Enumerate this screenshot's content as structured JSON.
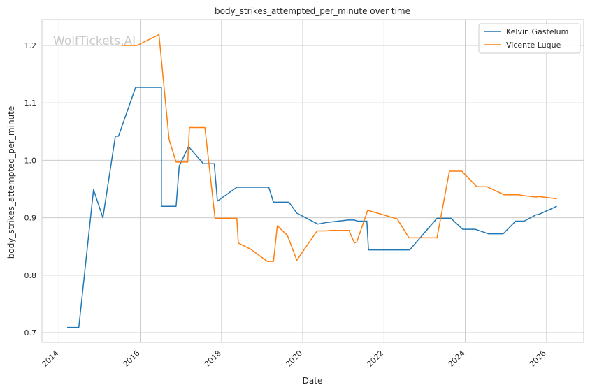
{
  "chart_data": {
    "type": "line",
    "title": "body_strikes_attempted_per_minute over time",
    "xlabel": "Date",
    "ylabel": "body_strikes_attempted_per_minute",
    "watermark": "WolfTickets.AI",
    "x_ticks": [
      "2014",
      "2016",
      "2018",
      "2020",
      "2022",
      "2024",
      "2026"
    ],
    "y_ticks": [
      "0.7",
      "0.8",
      "0.9",
      "1.0",
      "1.1",
      "1.2"
    ],
    "xlim": [
      "2013-08-01",
      "2026-12-01"
    ],
    "ylim": [
      0.683,
      1.245
    ],
    "grid": true,
    "legend_position": "top-right",
    "series": [
      {
        "name": "Kelvin Gastelum",
        "color": "#1f77b4",
        "points": [
          [
            "2014-03-15",
            0.709
          ],
          [
            "2014-06-28",
            0.709
          ],
          [
            "2014-11-08",
            0.949
          ],
          [
            "2015-01-31",
            0.9
          ],
          [
            "2015-05-23",
            1.042
          ],
          [
            "2015-06-20",
            1.042
          ],
          [
            "2015-11-21",
            1.127
          ],
          [
            "2016-07-09",
            1.127
          ],
          [
            "2016-07-10",
            0.92
          ],
          [
            "2016-11-19",
            0.92
          ],
          [
            "2016-12-17",
            0.99
          ],
          [
            "2017-03-11",
            1.024
          ],
          [
            "2017-07-22",
            0.994
          ],
          [
            "2017-10-28",
            0.994
          ],
          [
            "2017-11-25",
            0.929
          ],
          [
            "2018-05-19",
            0.953
          ],
          [
            "2019-03-02",
            0.953
          ],
          [
            "2019-04-13",
            0.927
          ],
          [
            "2019-08-31",
            0.927
          ],
          [
            "2019-11-09",
            0.908
          ],
          [
            "2020-05-16",
            0.889
          ],
          [
            "2020-08-08",
            0.892
          ],
          [
            "2021-02-13",
            0.896
          ],
          [
            "2021-04-10",
            0.896
          ],
          [
            "2021-05-08",
            0.894
          ],
          [
            "2021-07-31",
            0.894
          ],
          [
            "2021-08-14",
            0.844
          ],
          [
            "2022-08-20",
            0.844
          ],
          [
            "2023-04-22",
            0.899
          ],
          [
            "2023-08-26",
            0.899
          ],
          [
            "2023-12-09",
            0.88
          ],
          [
            "2024-03-30",
            0.88
          ],
          [
            "2024-07-27",
            0.872
          ],
          [
            "2024-12-07",
            0.872
          ],
          [
            "2025-03-29",
            0.894
          ],
          [
            "2025-06-14",
            0.894
          ],
          [
            "2025-09-27",
            0.905
          ],
          [
            "2025-10-25",
            0.906
          ],
          [
            "2026-04-04",
            0.92
          ]
        ]
      },
      {
        "name": "Vicente Luque",
        "color": "#ff7f0e",
        "points": [
          [
            "2015-07-15",
            1.2
          ],
          [
            "2015-12-05",
            1.2
          ],
          [
            "2016-06-18",
            1.219
          ],
          [
            "2016-09-17",
            1.036
          ],
          [
            "2016-11-19",
            0.997
          ],
          [
            "2017-03-04",
            0.997
          ],
          [
            "2017-03-18",
            1.057
          ],
          [
            "2017-08-05",
            1.057
          ],
          [
            "2017-11-04",
            0.899
          ],
          [
            "2018-05-19",
            0.899
          ],
          [
            "2018-06-01",
            0.856
          ],
          [
            "2018-09-22",
            0.845
          ],
          [
            "2019-02-17",
            0.824
          ],
          [
            "2019-04-13",
            0.824
          ],
          [
            "2019-05-18",
            0.886
          ],
          [
            "2019-08-17",
            0.869
          ],
          [
            "2019-11-09",
            0.826
          ],
          [
            "2020-05-09",
            0.877
          ],
          [
            "2020-08-01",
            0.877
          ],
          [
            "2020-09-05",
            0.878
          ],
          [
            "2021-02-20",
            0.878
          ],
          [
            "2021-04-10",
            0.856
          ],
          [
            "2021-05-01",
            0.858
          ],
          [
            "2021-08-07",
            0.913
          ],
          [
            "2022-04-30",
            0.898
          ],
          [
            "2022-08-13",
            0.865
          ],
          [
            "2023-04-22",
            0.865
          ],
          [
            "2023-08-12",
            0.981
          ],
          [
            "2023-12-02",
            0.981
          ],
          [
            "2024-04-13",
            0.954
          ],
          [
            "2024-07-13",
            0.954
          ],
          [
            "2024-12-14",
            0.94
          ],
          [
            "2025-04-19",
            0.94
          ],
          [
            "2025-06-28",
            0.938
          ],
          [
            "2025-09-27",
            0.936
          ],
          [
            "2025-10-25",
            0.937
          ],
          [
            "2026-04-04",
            0.933
          ]
        ]
      }
    ]
  }
}
